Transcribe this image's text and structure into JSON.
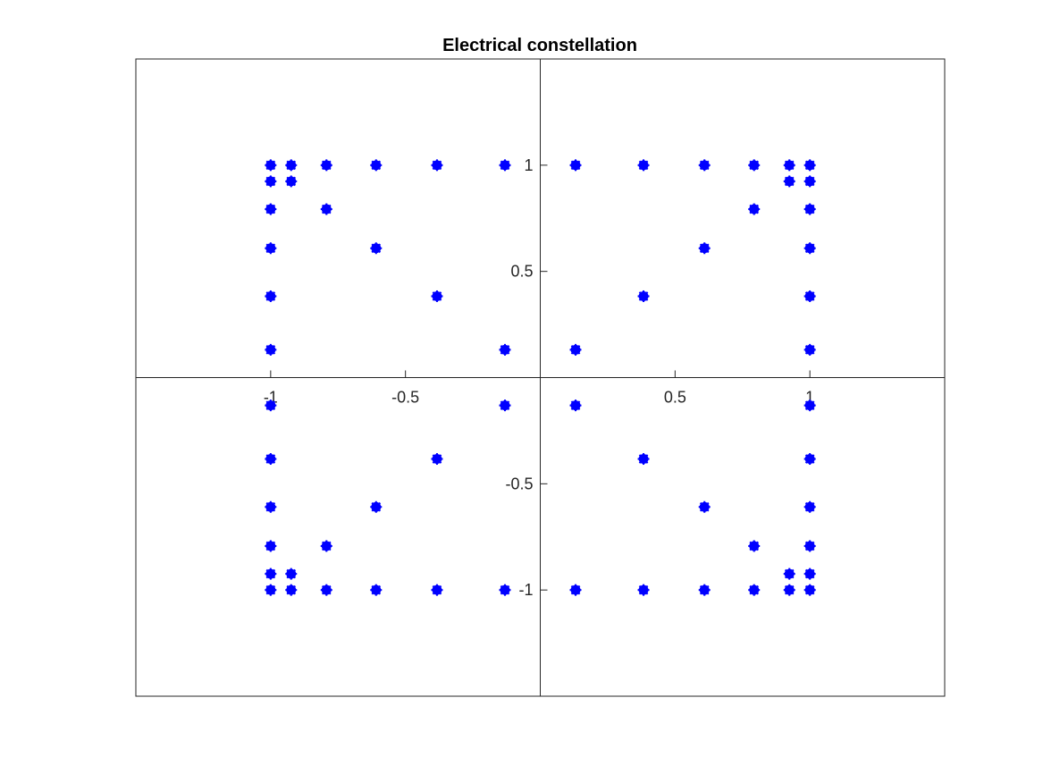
{
  "chart_data": {
    "type": "scatter",
    "title": "Electrical constellation",
    "xlabel": "",
    "ylabel": "",
    "xlim": [
      -1.5,
      1.5
    ],
    "ylim": [
      -1.5,
      1.5
    ],
    "grid": false,
    "axis_location": "origin",
    "marker": "asterisk",
    "series": [
      {
        "color": "#0000ff",
        "points": [
          [
            -1.0,
            1.0
          ],
          [
            -0.924,
            1.0
          ],
          [
            -0.793,
            1.0
          ],
          [
            -0.609,
            1.0
          ],
          [
            -0.383,
            1.0
          ],
          [
            -0.131,
            1.0
          ],
          [
            -1.0,
            0.924
          ],
          [
            -0.924,
            0.924
          ],
          [
            -1.0,
            0.793
          ],
          [
            -0.793,
            0.793
          ],
          [
            -1.0,
            0.609
          ],
          [
            -0.609,
            0.609
          ],
          [
            -1.0,
            0.383
          ],
          [
            -0.383,
            0.383
          ],
          [
            -1.0,
            0.131
          ],
          [
            -0.131,
            0.131
          ],
          [
            0.131,
            1.0
          ],
          [
            0.383,
            1.0
          ],
          [
            0.609,
            1.0
          ],
          [
            0.793,
            1.0
          ],
          [
            0.924,
            1.0
          ],
          [
            1.0,
            1.0
          ],
          [
            0.924,
            0.924
          ],
          [
            1.0,
            0.924
          ],
          [
            0.793,
            0.793
          ],
          [
            1.0,
            0.793
          ],
          [
            0.609,
            0.609
          ],
          [
            1.0,
            0.609
          ],
          [
            0.383,
            0.383
          ],
          [
            1.0,
            0.383
          ],
          [
            0.131,
            0.131
          ],
          [
            1.0,
            0.131
          ],
          [
            -1.0,
            -0.131
          ],
          [
            -0.131,
            -0.131
          ],
          [
            -1.0,
            -0.383
          ],
          [
            -0.383,
            -0.383
          ],
          [
            -1.0,
            -0.609
          ],
          [
            -0.609,
            -0.609
          ],
          [
            -1.0,
            -0.793
          ],
          [
            -0.793,
            -0.793
          ],
          [
            -1.0,
            -0.924
          ],
          [
            -0.924,
            -0.924
          ],
          [
            -1.0,
            -1.0
          ],
          [
            -0.924,
            -1.0
          ],
          [
            -0.793,
            -1.0
          ],
          [
            -0.609,
            -1.0
          ],
          [
            -0.383,
            -1.0
          ],
          [
            -0.131,
            -1.0
          ],
          [
            0.131,
            -0.131
          ],
          [
            1.0,
            -0.131
          ],
          [
            0.383,
            -0.383
          ],
          [
            1.0,
            -0.383
          ],
          [
            0.609,
            -0.609
          ],
          [
            1.0,
            -0.609
          ],
          [
            0.793,
            -0.793
          ],
          [
            1.0,
            -0.793
          ],
          [
            0.924,
            -0.924
          ],
          [
            1.0,
            -0.924
          ],
          [
            0.131,
            -1.0
          ],
          [
            0.383,
            -1.0
          ],
          [
            0.609,
            -1.0
          ],
          [
            0.793,
            -1.0
          ],
          [
            0.924,
            -1.0
          ],
          [
            1.0,
            -1.0
          ]
        ]
      }
    ],
    "x_ticks": [
      {
        "value": -1,
        "label": "-1"
      },
      {
        "value": -0.5,
        "label": "-0.5"
      },
      {
        "value": 0.5,
        "label": "0.5"
      },
      {
        "value": 1,
        "label": "1"
      }
    ],
    "y_ticks": [
      {
        "value": 1,
        "label": "1"
      },
      {
        "value": 0.5,
        "label": "0.5"
      },
      {
        "value": -0.5,
        "label": "-0.5"
      },
      {
        "value": -1,
        "label": "-1"
      }
    ]
  }
}
